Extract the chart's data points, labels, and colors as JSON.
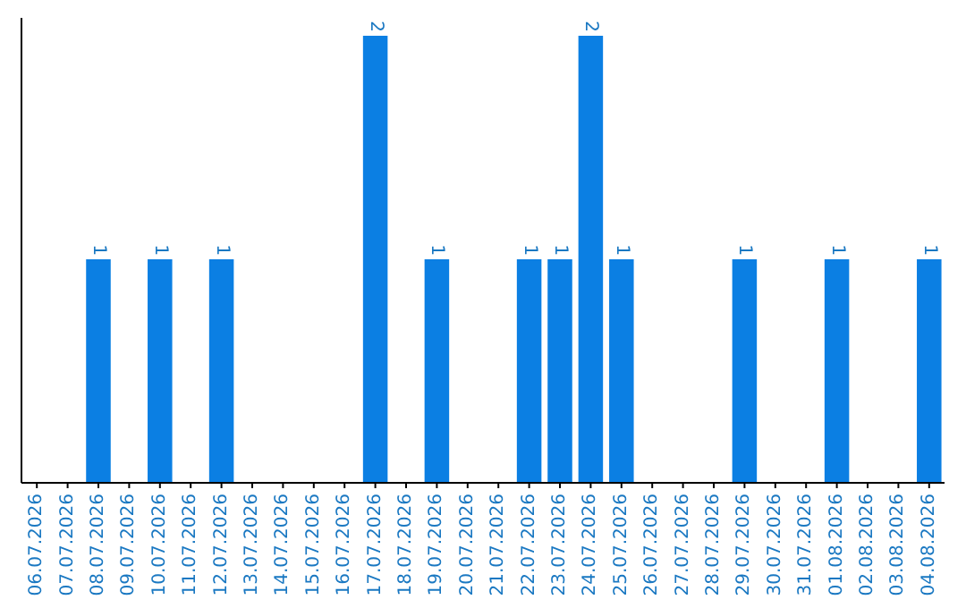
{
  "chart_data": {
    "type": "bar",
    "categories": [
      "06.07.2026",
      "07.07.2026",
      "08.07.2026",
      "09.07.2026",
      "10.07.2026",
      "11.07.2026",
      "12.07.2026",
      "13.07.2026",
      "14.07.2026",
      "15.07.2026",
      "16.07.2026",
      "17.07.2026",
      "18.07.2026",
      "19.07.2026",
      "20.07.2026",
      "21.07.2026",
      "22.07.2026",
      "23.07.2026",
      "24.07.2026",
      "25.07.2026",
      "26.07.2026",
      "27.07.2026",
      "28.07.2026",
      "29.07.2026",
      "30.07.2026",
      "31.07.2026",
      "01.08.2026",
      "02.08.2026",
      "03.08.2026",
      "04.08.2026"
    ],
    "values": [
      0,
      0,
      1,
      0,
      1,
      0,
      1,
      0,
      0,
      0,
      0,
      2,
      0,
      1,
      0,
      0,
      1,
      1,
      2,
      1,
      0,
      0,
      0,
      1,
      0,
      0,
      1,
      0,
      0,
      1
    ],
    "value_labels": [
      null,
      null,
      "1",
      null,
      "1",
      null,
      "1",
      null,
      null,
      null,
      null,
      "2",
      null,
      "1",
      null,
      null,
      "1",
      "1",
      "2",
      "1",
      null,
      null,
      null,
      "1",
      null,
      null,
      "1",
      null,
      null,
      "1"
    ],
    "color": "#0b7fe3",
    "tick_labels": "x"
  }
}
